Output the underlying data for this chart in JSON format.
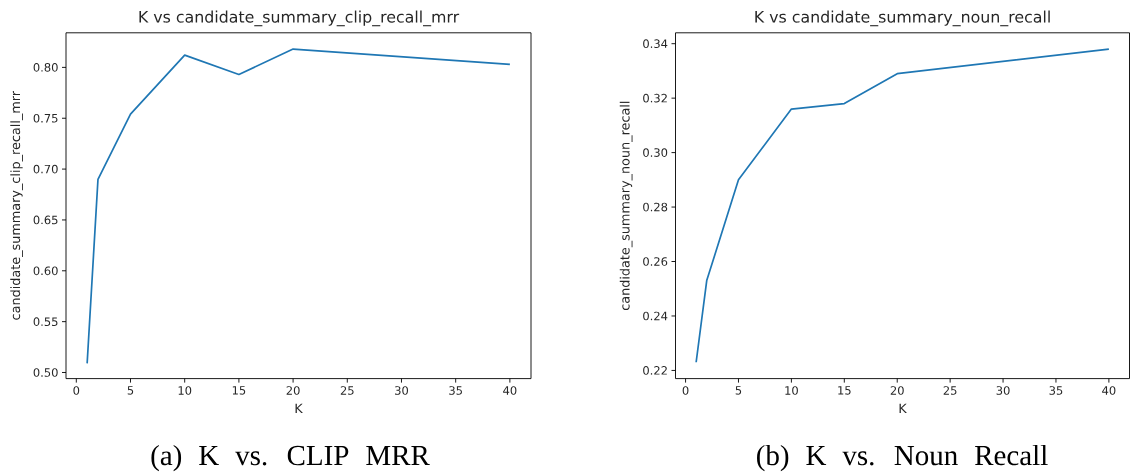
{
  "chart_data": [
    {
      "type": "line",
      "title": "K vs candidate_summary_clip_recall_mrr",
      "xlabel": "K",
      "ylabel": "candidate_summary_clip_recall_mrr",
      "x": [
        1,
        2,
        5,
        10,
        15,
        20,
        40
      ],
      "series": [
        {
          "color": "#1f77b4",
          "values": [
            0.509,
            0.69,
            0.754,
            0.812,
            0.793,
            0.818,
            0.803
          ]
        }
      ],
      "xlim": [
        -0.95,
        41.95
      ],
      "ylim": [
        0.494,
        0.834
      ],
      "xticks": [
        0,
        5,
        10,
        15,
        20,
        25,
        30,
        35,
        40
      ],
      "yticks": [
        {
          "value": 0.5,
          "label": "0.50"
        },
        {
          "value": 0.55,
          "label": "0.55"
        },
        {
          "value": 0.6,
          "label": "0.60"
        },
        {
          "value": 0.65,
          "label": "0.65"
        },
        {
          "value": 0.7,
          "label": "0.70"
        },
        {
          "value": 0.75,
          "label": "0.75"
        },
        {
          "value": 0.8,
          "label": "0.80"
        }
      ],
      "annotations": [
        "(a) K vs. CLIP MRR"
      ]
    },
    {
      "type": "line",
      "title": "K vs candidate_summary_noun_recall",
      "xlabel": "K",
      "ylabel": "candidate_summary_noun_recall",
      "x": [
        1,
        2,
        5,
        10,
        15,
        20,
        40
      ],
      "series": [
        {
          "color": "#1f77b4",
          "values": [
            0.223,
            0.253,
            0.29,
            0.316,
            0.318,
            0.329,
            0.338
          ]
        }
      ],
      "xlim": [
        -0.95,
        41.95
      ],
      "ylim": [
        0.217,
        0.344
      ],
      "xticks": [
        0,
        5,
        10,
        15,
        20,
        25,
        30,
        35,
        40
      ],
      "yticks": [
        {
          "value": 0.22,
          "label": "0.22"
        },
        {
          "value": 0.24,
          "label": "0.24"
        },
        {
          "value": 0.26,
          "label": "0.26"
        },
        {
          "value": 0.28,
          "label": "0.28"
        },
        {
          "value": 0.3,
          "label": "0.30"
        },
        {
          "value": 0.32,
          "label": "0.32"
        },
        {
          "value": 0.34,
          "label": "0.34"
        }
      ],
      "annotations": [
        "(b) K vs. Noun Recall"
      ]
    }
  ]
}
